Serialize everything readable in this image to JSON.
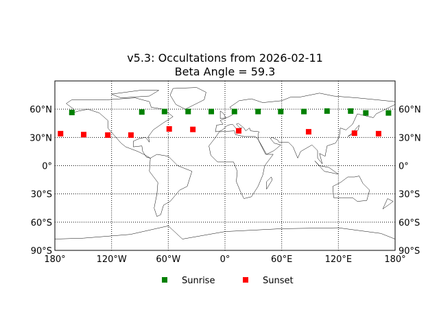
{
  "chart_data": {
    "type": "scatter",
    "title": "v5.3: Occultations from 2026-02-11",
    "subtitle": "Beta Angle = 59.3",
    "xlabel": "",
    "ylabel": "",
    "xlim": [
      -180,
      180
    ],
    "ylim": [
      -90,
      90
    ],
    "grid": true,
    "legend_position": "bottom",
    "x_ticks": [
      {
        "value": -180,
        "label": "180°"
      },
      {
        "value": -120,
        "label": "120°W"
      },
      {
        "value": -60,
        "label": "60°W"
      },
      {
        "value": 0,
        "label": "0°"
      },
      {
        "value": 60,
        "label": "60°E"
      },
      {
        "value": 120,
        "label": "120°E"
      },
      {
        "value": 180,
        "label": "180°"
      }
    ],
    "y_ticks": [
      {
        "value": 60,
        "label": "60°N"
      },
      {
        "value": 30,
        "label": "30°N"
      },
      {
        "value": 0,
        "label": "0°"
      },
      {
        "value": -30,
        "label": "30°S"
      },
      {
        "value": -60,
        "label": "60°S"
      },
      {
        "value": -90,
        "label": "90°S"
      }
    ],
    "series": [
      {
        "name": "Sunrise",
        "color": "#008000",
        "marker": "square",
        "points": [
          [
            -162,
            56.5
          ],
          [
            -88,
            57
          ],
          [
            -64,
            57.5
          ],
          [
            -39,
            57.5
          ],
          [
            -14.5,
            57.5
          ],
          [
            10,
            57.5
          ],
          [
            35,
            57.5
          ],
          [
            59,
            57.5
          ],
          [
            83.5,
            57.5
          ],
          [
            108,
            58
          ],
          [
            133,
            58
          ],
          [
            149,
            56
          ],
          [
            173,
            56
          ]
        ]
      },
      {
        "name": "Sunset",
        "color": "#ff0000",
        "marker": "square",
        "points": [
          [
            -174,
            34
          ],
          [
            -149.5,
            33
          ],
          [
            -124,
            32.5
          ],
          [
            -99.5,
            32.5
          ],
          [
            -59,
            39
          ],
          [
            -34,
            38.5
          ],
          [
            14.5,
            37
          ],
          [
            88.5,
            36
          ],
          [
            137,
            34.5
          ],
          [
            162.5,
            34
          ]
        ]
      }
    ]
  }
}
